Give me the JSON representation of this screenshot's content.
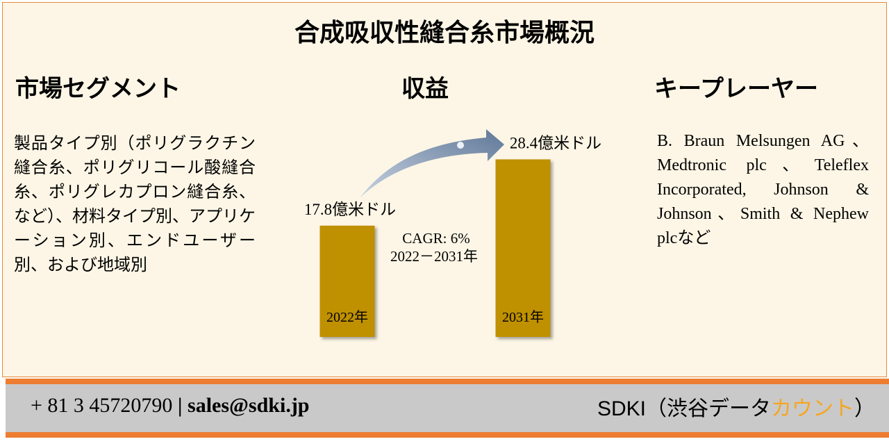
{
  "title": "合成吸収性縫合糸市場概況",
  "segment": {
    "heading": "市場セグメント",
    "text": "製品タイプ別（ポリグラクチン縫合糸、ポリグリコール酸縫合糸、ポリグレカプロン縫合糸、など）、材料タイプ別、アプリケーション別、エンドユーザー別、および地域別"
  },
  "revenue": {
    "heading": "収益",
    "chart_data": {
      "type": "bar",
      "categories": [
        "2022年",
        "2031年"
      ],
      "values": [
        17.8,
        28.4
      ],
      "value_labels": [
        "17.8億米ドル",
        "28.4億米ドル"
      ],
      "color": "#bf9000",
      "annotations": [
        "CAGR: 6%",
        "2022－2031年"
      ]
    }
  },
  "players": {
    "heading": "キープレーヤー",
    "text": "B. Braun Melsungen AG、Medtronic plc、Teleflex Incorporated, Johnson & Johnson、Smith & Nephew plcなど"
  },
  "footer": {
    "phone": "+ 81 3 45720790",
    "separator": "|",
    "email": "sales@sdki.jp",
    "brand": "SDKI（渋谷データ",
    "brand_highlight": "カウント",
    "brand_end": "）"
  }
}
